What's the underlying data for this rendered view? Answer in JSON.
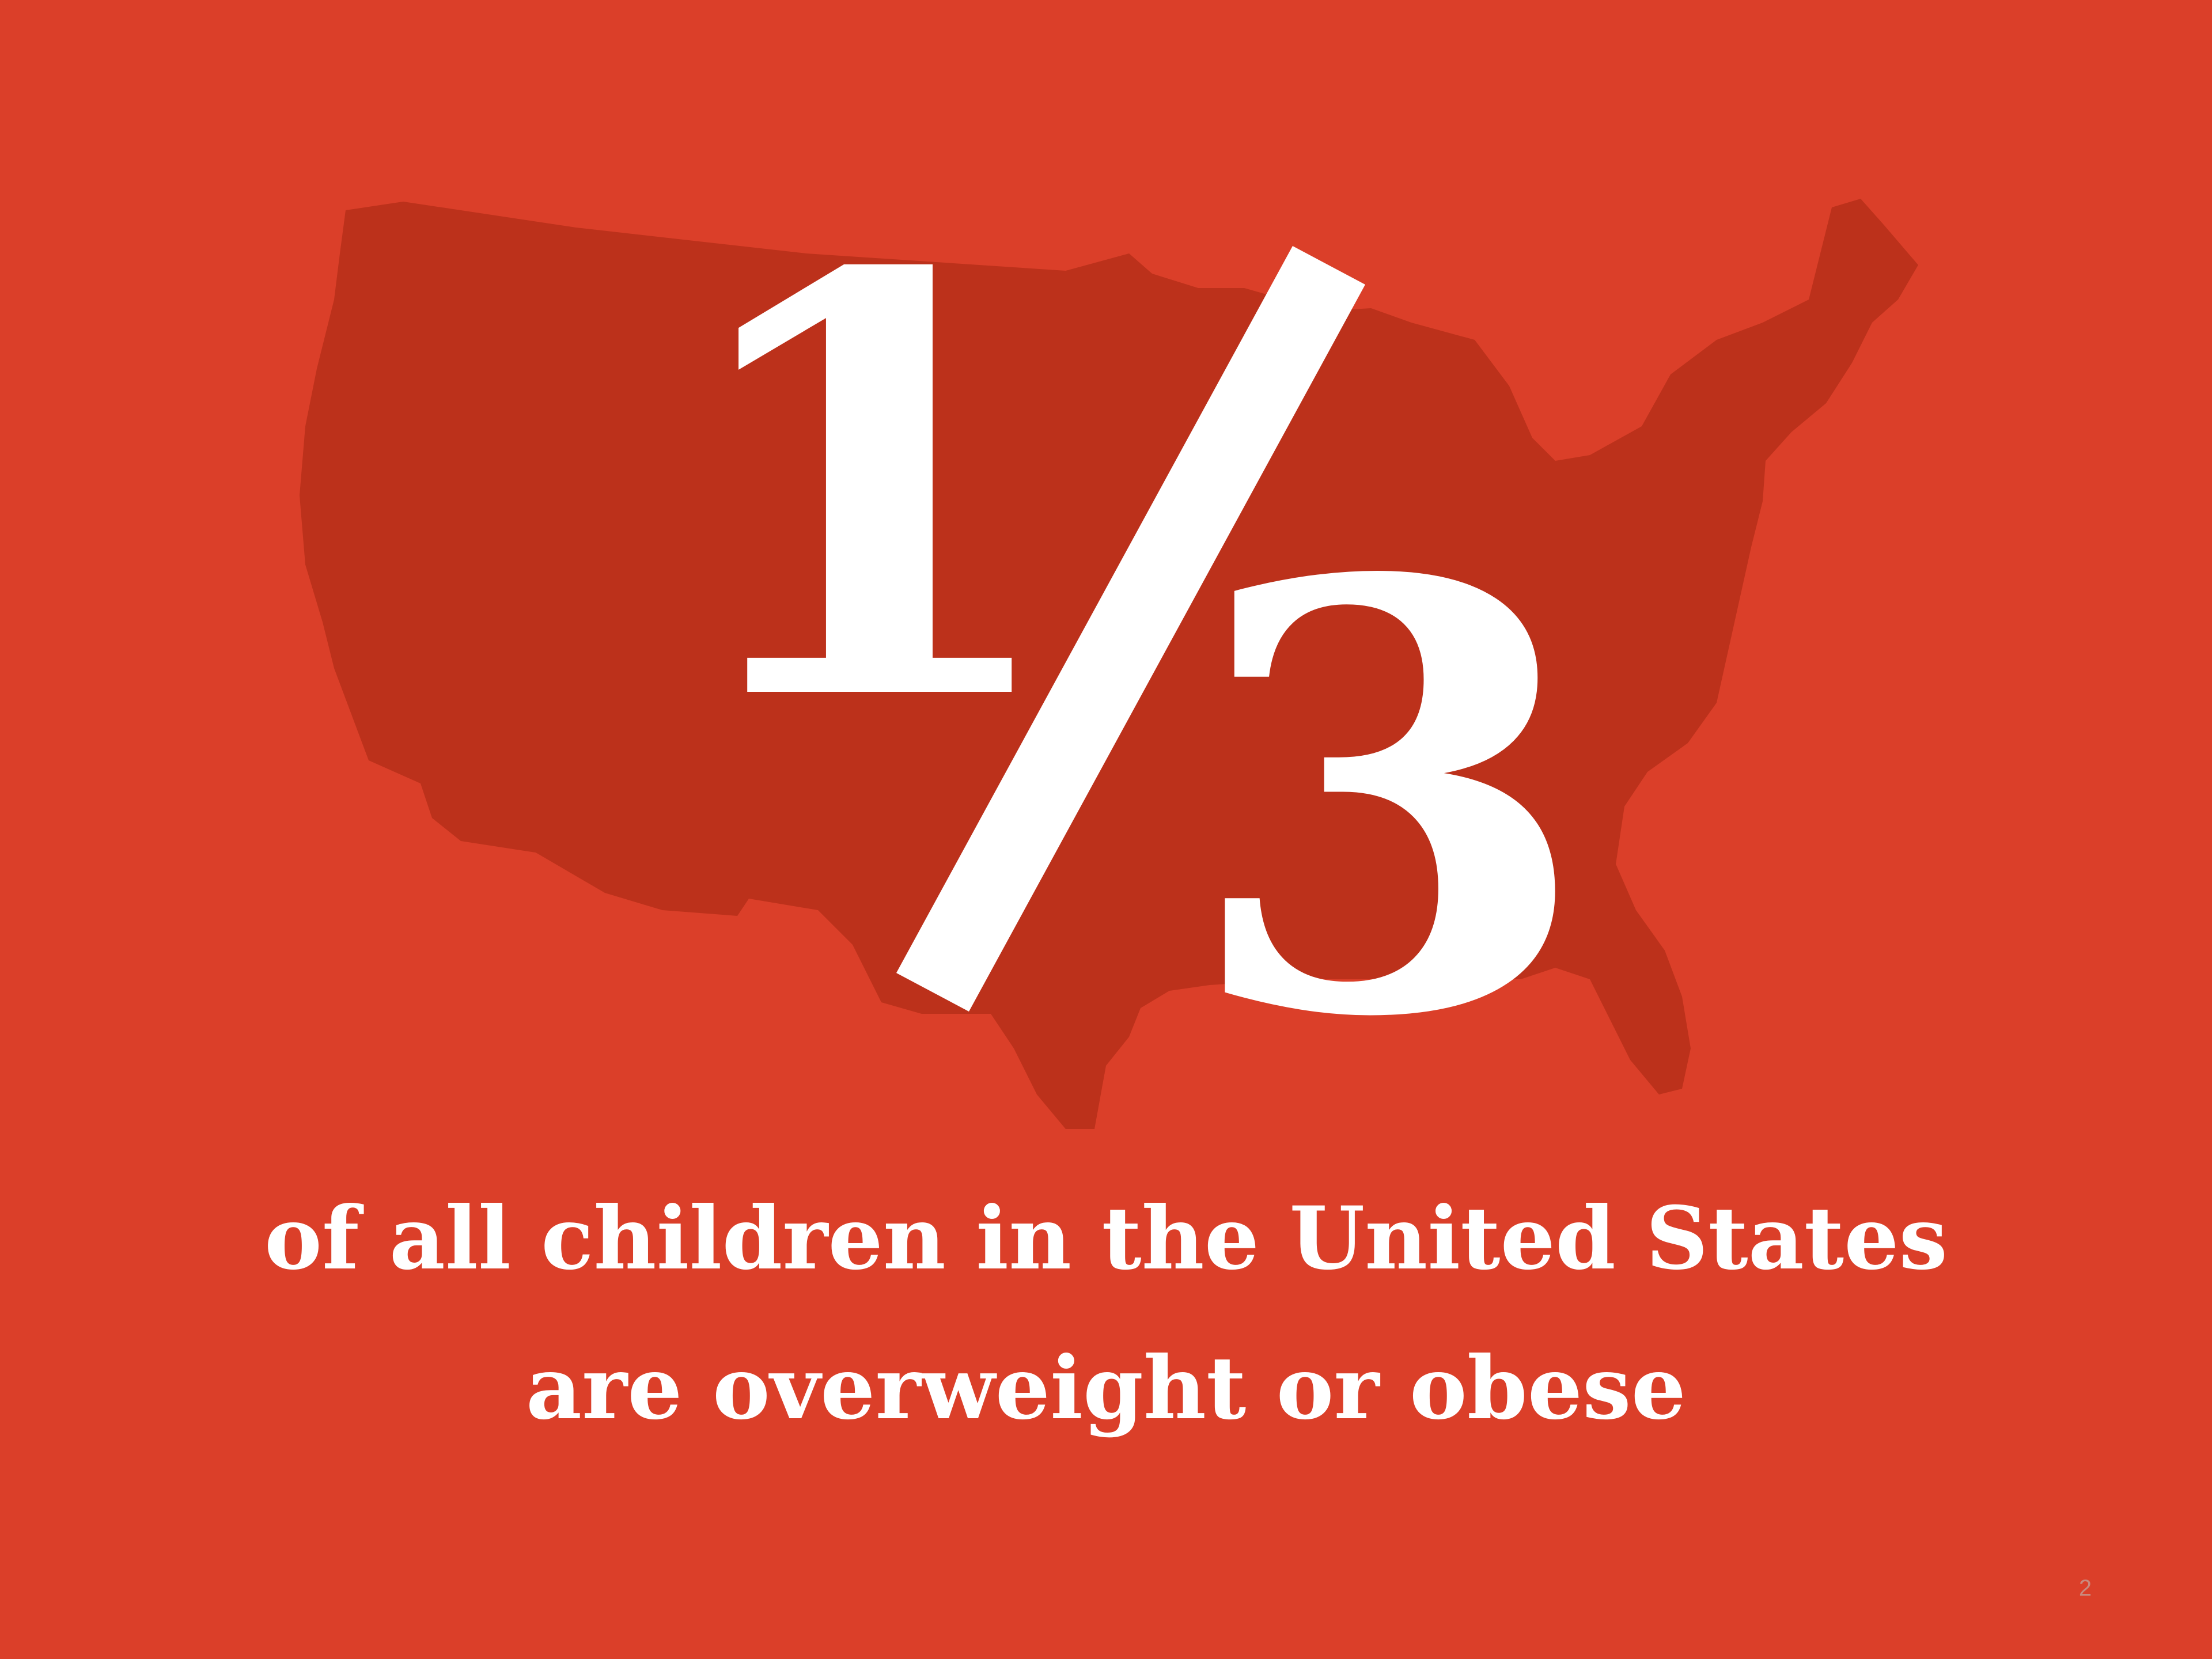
{
  "fraction": {
    "numerator": "1",
    "denominator": "3"
  },
  "caption": {
    "line1": "of all children in the United States",
    "line2": "are overweight or obese"
  },
  "page_number": "2",
  "illustration": {
    "map_icon": "us-map-silhouette"
  },
  "colors": {
    "background": "#DB3F29",
    "map": "#BC311B",
    "text": "#FFFFFF"
  }
}
